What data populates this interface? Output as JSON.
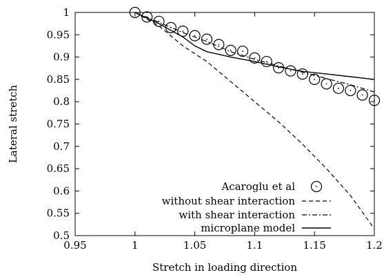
{
  "chart_data": {
    "type": "line",
    "title": "",
    "xlabel": "Stretch in loading direction",
    "ylabel": "Lateral stretch",
    "xlim": [
      0.95,
      1.2
    ],
    "ylim": [
      0.5,
      1.0
    ],
    "x_ticks": [
      "0.95",
      "1",
      "1.05",
      "1.1",
      "1.15",
      "1.2"
    ],
    "y_ticks": [
      "0.5",
      "0.55",
      "0.6",
      "0.65",
      "0.7",
      "0.75",
      "0.8",
      "0.85",
      "0.9",
      "0.95",
      "1"
    ],
    "grid": false,
    "legend_position": "bottom-right",
    "series": [
      {
        "name": "Acaroglu et al",
        "style": "circle-markers",
        "x": [
          1.0,
          1.01,
          1.02,
          1.03,
          1.04,
          1.05,
          1.06,
          1.07,
          1.08,
          1.09,
          1.1,
          1.11,
          1.12,
          1.13,
          1.14,
          1.15,
          1.16,
          1.17,
          1.18,
          1.19,
          1.2
        ],
        "y": [
          1.0,
          0.99,
          0.98,
          0.966,
          0.958,
          0.948,
          0.94,
          0.928,
          0.915,
          0.913,
          0.898,
          0.89,
          0.876,
          0.869,
          0.862,
          0.85,
          0.84,
          0.83,
          0.825,
          0.815,
          0.803
        ]
      },
      {
        "name": "without shear interaction",
        "style": "dashed",
        "x": [
          1.0,
          1.02,
          1.04,
          1.06,
          1.08,
          1.1,
          1.12,
          1.14,
          1.16,
          1.18,
          1.2
        ],
        "y": [
          1.0,
          0.97,
          0.925,
          0.89,
          0.845,
          0.8,
          0.755,
          0.705,
          0.65,
          0.59,
          0.515
        ]
      },
      {
        "name": "with shear interaction",
        "style": "dash-dot",
        "x": [
          1.0,
          1.02,
          1.04,
          1.06,
          1.08,
          1.1,
          1.12,
          1.14,
          1.16,
          1.18,
          1.2
        ],
        "y": [
          1.0,
          0.978,
          0.955,
          0.935,
          0.912,
          0.895,
          0.88,
          0.866,
          0.852,
          0.838,
          0.822
        ]
      },
      {
        "name": "microplane model",
        "style": "solid",
        "x": [
          1.0,
          1.02,
          1.04,
          1.05,
          1.06,
          1.08,
          1.1,
          1.12,
          1.14,
          1.16,
          1.18,
          1.2
        ],
        "y": [
          1.0,
          0.975,
          0.945,
          0.925,
          0.912,
          0.9,
          0.89,
          0.878,
          0.868,
          0.862,
          0.856,
          0.85
        ]
      }
    ]
  }
}
